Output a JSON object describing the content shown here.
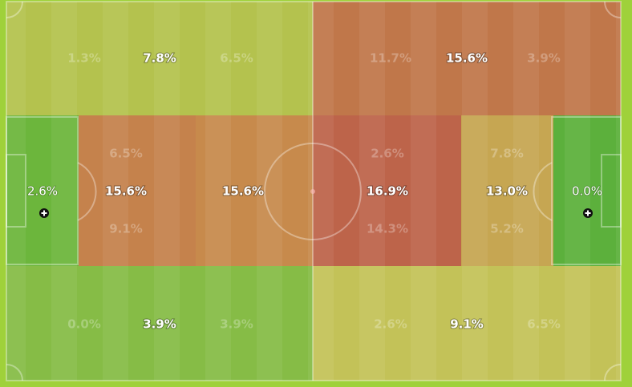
{
  "zones": [
    {
      "color": "#b4c24e",
      "label": "7.8%",
      "side_labels": [
        "1.3%",
        "6.5%"
      ]
    },
    {
      "color": "#c0774a",
      "label": "15.6%",
      "side_labels": [
        "11.7%",
        "3.9%"
      ]
    },
    {
      "color": "#6cb63c",
      "label": "2.6%"
    },
    {
      "color": "#c5824c",
      "label": "15.6%",
      "side_labels": [
        "6.5%",
        "9.1%"
      ]
    },
    {
      "color": "#c78a4c",
      "label": "15.6%"
    },
    {
      "color": "#bd644a",
      "label": "16.9%",
      "side_labels": [
        "2.6%",
        "14.3%"
      ]
    },
    {
      "color": "#c6a652",
      "label": "13.0%",
      "side_labels": [
        "7.8%",
        "5.2%"
      ]
    },
    {
      "color": "#5cb03c",
      "label": "0.0%"
    },
    {
      "color": "#86bc46",
      "label": "3.9%",
      "side_labels": [
        "0.0%",
        "3.9%"
      ]
    },
    {
      "color": "#c3c258",
      "label": "9.1%",
      "side_labels": [
        "2.6%",
        "6.5%"
      ]
    }
  ]
}
